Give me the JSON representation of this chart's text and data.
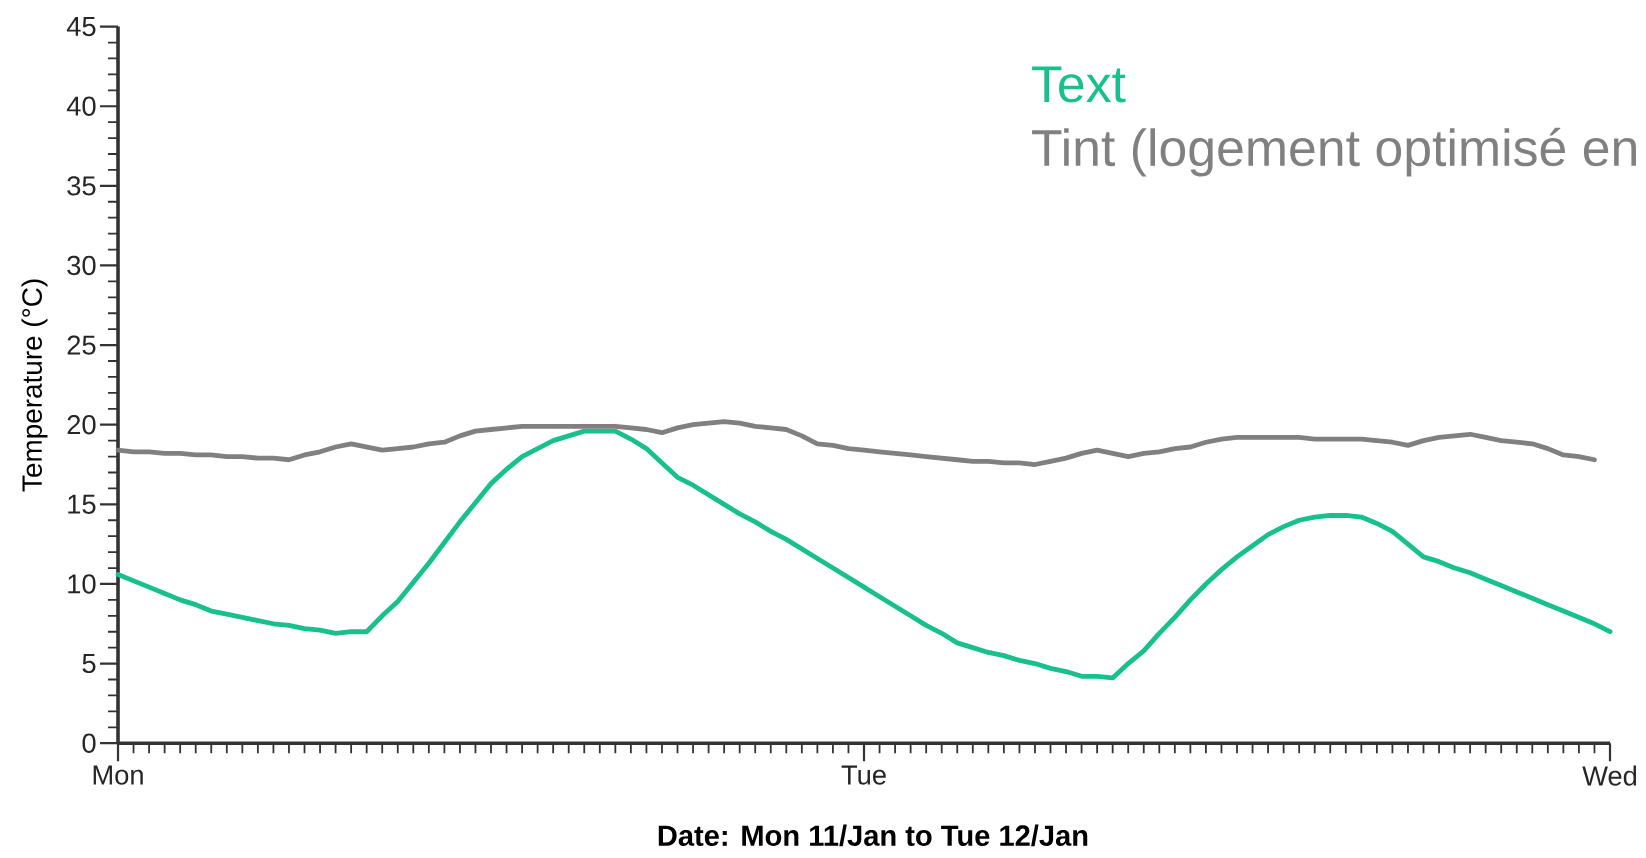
{
  "chart_data": {
    "type": "line",
    "xlabel": "Date: Mon 11/Jan to Tue 12/Jan",
    "ylabel": "Temperature (°C)",
    "categories": [
      "Mon",
      null,
      null,
      null,
      null,
      null,
      null,
      null,
      null,
      null,
      null,
      null,
      null,
      null,
      null,
      null,
      null,
      null,
      null,
      null,
      null,
      null,
      null,
      null,
      null,
      null,
      null,
      null,
      null,
      null,
      null,
      null,
      null,
      null,
      null,
      null,
      null,
      null,
      null,
      null,
      null,
      null,
      null,
      null,
      null,
      null,
      null,
      null,
      "Tue",
      null,
      null,
      null,
      null,
      null,
      null,
      null,
      null,
      null,
      null,
      null,
      null,
      null,
      null,
      null,
      null,
      null,
      null,
      null,
      null,
      null,
      null,
      null,
      null,
      null,
      null,
      null,
      null,
      null,
      null,
      null,
      null,
      null,
      null,
      null,
      null,
      null,
      null,
      null,
      null,
      null,
      null,
      null,
      null,
      null,
      null,
      null,
      "Wed"
    ],
    "ylim": [
      0,
      45
    ],
    "yticks": [
      0,
      {
        "value": 1,
        "label": null
      },
      {
        "value": 2,
        "label": null
      },
      {
        "value": 3,
        "label": null
      },
      {
        "value": 4,
        "label": null
      },
      5,
      {
        "value": 6,
        "label": null
      },
      {
        "value": 7,
        "label": null
      },
      {
        "value": 8,
        "label": null
      },
      {
        "value": 9,
        "label": null
      },
      10,
      {
        "value": 11,
        "label": null
      },
      {
        "value": 12,
        "label": null
      },
      {
        "value": 13,
        "label": null
      },
      {
        "value": 14,
        "label": null
      },
      15,
      {
        "value": 16,
        "label": null
      },
      {
        "value": 17,
        "label": null
      },
      {
        "value": 18,
        "label": null
      },
      {
        "value": 19,
        "label": null
      },
      20,
      {
        "value": 21,
        "label": null
      },
      {
        "value": 22,
        "label": null
      },
      {
        "value": 23,
        "label": null
      },
      {
        "value": 24,
        "label": null
      },
      25,
      {
        "value": 26,
        "label": null
      },
      {
        "value": 27,
        "label": null
      },
      {
        "value": 28,
        "label": null
      },
      {
        "value": 29,
        "label": null
      },
      30,
      {
        "value": 31,
        "label": null
      },
      {
        "value": 32,
        "label": null
      },
      {
        "value": 33,
        "label": null
      },
      {
        "value": 34,
        "label": null
      },
      35,
      {
        "value": 36,
        "label": null
      },
      {
        "value": 37,
        "label": null
      },
      {
        "value": 38,
        "label": null
      },
      {
        "value": 39,
        "label": null
      },
      40,
      {
        "value": 41,
        "label": null
      },
      {
        "value": 42,
        "label": null
      },
      {
        "value": 43,
        "label": null
      },
      {
        "value": 44,
        "label": null
      },
      45
    ],
    "legend": "top right",
    "series": [
      {
        "name": "Text",
        "color": "#17c08d",
        "values": [
          10.6,
          10.2,
          9.8,
          9.4,
          9.0,
          8.7,
          8.3,
          8.1,
          7.9,
          7.7,
          7.5,
          7.4,
          7.2,
          7.1,
          6.9,
          7.0,
          7.0,
          8.0,
          8.9,
          10.1,
          11.3,
          12.6,
          13.9,
          15.1,
          16.3,
          17.2,
          18.0,
          18.5,
          19.0,
          19.3,
          19.6,
          19.6,
          19.6,
          19.1,
          18.5,
          17.6,
          16.7,
          16.2,
          15.6,
          15.0,
          14.4,
          13.9,
          13.3,
          12.8,
          12.2,
          11.6,
          11.0,
          10.4,
          9.8,
          9.2,
          8.6,
          8.0,
          7.4,
          6.9,
          6.3,
          6.0,
          5.7,
          5.5,
          5.2,
          5.0,
          4.7,
          4.5,
          4.2,
          4.2,
          4.1,
          5.0,
          5.8,
          6.9,
          7.9,
          9.0,
          10.0,
          10.9,
          11.7,
          12.4,
          13.1,
          13.6,
          14.0,
          14.2,
          14.3,
          14.3,
          14.2,
          13.8,
          13.3,
          12.5,
          11.7,
          11.4,
          11.0,
          10.7,
          10.3,
          9.9,
          9.5,
          9.1,
          8.7,
          8.3,
          7.9,
          7.5,
          7.0
        ]
      },
      {
        "name": "Tint (logement optimisé en",
        "color": "#808080",
        "values": [
          18.4,
          18.3,
          18.3,
          18.2,
          18.2,
          18.1,
          18.1,
          18.0,
          18.0,
          17.9,
          17.9,
          17.8,
          18.1,
          18.3,
          18.6,
          18.8,
          18.6,
          18.4,
          18.5,
          18.6,
          18.8,
          18.9,
          19.3,
          19.6,
          19.7,
          19.8,
          19.9,
          19.9,
          19.9,
          19.9,
          19.9,
          19.9,
          19.9,
          19.8,
          19.7,
          19.5,
          19.8,
          20.0,
          20.1,
          20.2,
          20.1,
          19.9,
          19.8,
          19.7,
          19.3,
          18.8,
          18.7,
          18.5,
          18.4,
          18.3,
          18.2,
          18.1,
          18.0,
          17.9,
          17.8,
          17.7,
          17.7,
          17.6,
          17.6,
          17.5,
          17.7,
          17.9,
          18.2,
          18.4,
          18.2,
          18.0,
          18.2,
          18.3,
          18.5,
          18.6,
          18.9,
          19.1,
          19.2,
          19.2,
          19.2,
          19.2,
          19.2,
          19.1,
          19.1,
          19.1,
          19.1,
          19.0,
          18.9,
          18.7,
          19.0,
          19.2,
          19.3,
          19.4,
          19.2,
          19.0,
          18.9,
          18.8,
          18.5,
          18.1,
          18.0,
          17.8,
          null
        ]
      }
    ]
  }
}
